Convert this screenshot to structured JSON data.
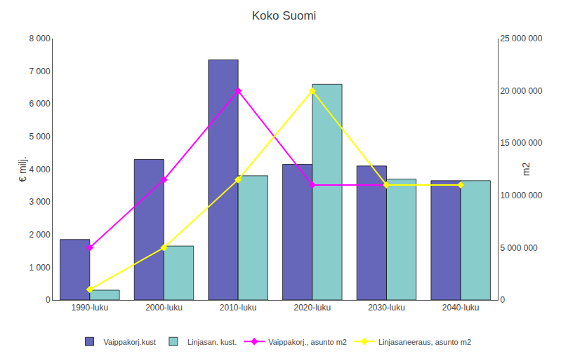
{
  "chart_data": {
    "type": "bar",
    "title": "Koko Suomi",
    "categories": [
      "1990-luku",
      "2000-luku",
      "2010-luku",
      "2020-luku",
      "2030-luku",
      "2040-luku"
    ],
    "ylabel": "€ milj.",
    "y2label": "m2",
    "series": [
      {
        "name": "Vaippakorj.kust",
        "type": "bar",
        "color": "#6666BB",
        "values": [
          1850,
          4300,
          7350,
          4150,
          4100,
          3650
        ]
      },
      {
        "name": "Linjasan. kust.",
        "type": "bar",
        "color": "#88CCCC",
        "values": [
          300,
          1650,
          3800,
          6600,
          3700,
          3650
        ]
      },
      {
        "name": "Vaippakorj., asunto m2",
        "type": "line",
        "axis": "y2",
        "marker": "diamond",
        "color": "#FF00FF",
        "values": [
          5000000,
          11500000,
          20000000,
          11000000,
          11000000,
          11000000
        ]
      },
      {
        "name": "Linjasaneeraus, asunto m2",
        "type": "line",
        "axis": "y2",
        "marker": "diamond",
        "color": "#FFFF00",
        "values": [
          1000000,
          5000000,
          11500000,
          20000000,
          11000000,
          11000000
        ]
      }
    ],
    "ylim": [
      0,
      8000
    ],
    "yticks": [
      0,
      {
        "value": 1000,
        "label": "1 000"
      },
      {
        "value": 2000,
        "label": "2 000"
      },
      {
        "value": 3000,
        "label": "3 000"
      },
      {
        "value": 4000,
        "label": "4 000"
      },
      {
        "value": 5000,
        "label": "5 000"
      },
      {
        "value": 6000,
        "label": "6 000"
      },
      {
        "value": 7000,
        "label": "7 000"
      },
      {
        "value": 8000,
        "label": "8 000"
      }
    ],
    "y2lim": [
      0,
      25000000
    ],
    "y2ticks": [
      0,
      {
        "value": 5000000,
        "label": "5 000 000"
      },
      {
        "value": 10000000,
        "label": "10 000 000"
      },
      {
        "value": 15000000,
        "label": "15 000 000"
      },
      {
        "value": 20000000,
        "label": "20 000 000"
      },
      {
        "value": 25000000,
        "label": "25 000 000"
      }
    ],
    "grid": false,
    "legend": "bottom"
  }
}
